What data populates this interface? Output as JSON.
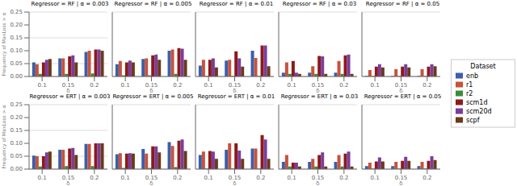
{
  "chart_data": [
    {
      "type": "bar",
      "title": "Regressor = RF | α = 0.003",
      "categories": [
        "0.1",
        "0.15",
        "0.2"
      ],
      "xlabel": "δ",
      "ylabel": "Frequency of MaxLoss > α",
      "legend": "right",
      "legend_title": "Dataset",
      "series": [
        {
          "name": "enb",
          "color": "#3a5fac",
          "values": [
            0.055,
            0.07,
            0.095
          ]
        },
        {
          "name": "r1",
          "color": "#c8523a",
          "values": [
            0.048,
            0.07,
            0.1
          ]
        },
        {
          "name": "r2",
          "color": "#3a8c3a",
          "values": [
            0.01,
            0.01,
            0.012
          ]
        },
        {
          "name": "scm1d",
          "color": "#8b1a1a",
          "values": [
            0.055,
            0.078,
            0.105
          ]
        },
        {
          "name": "scm20d",
          "color": "#7b3d9b",
          "values": [
            0.065,
            0.082,
            0.105
          ]
        },
        {
          "name": "scpf",
          "color": "#6b3a1a",
          "values": [
            0.068,
            0.055,
            0.1
          ]
        }
      ],
      "ylim": [
        0.0,
        0.25
      ],
      "yticks": [
        {
          "value": 0.0,
          "label": "0.00"
        },
        0.05,
        {
          "value": 0.1,
          "label": "0.10"
        },
        0.15,
        {
          "value": 0.2,
          "label": "0.20"
        },
        0.25
      ],
      "grid": true
    },
    {
      "type": "bar",
      "title": "Regressor = RF | α = 0.005",
      "categories": [
        "0.1",
        "0.15",
        "0.2"
      ],
      "xlabel": "δ",
      "tick_labels": "x",
      "series": [
        {
          "name": "enb",
          "color": "#3a5fac",
          "values": [
            0.048,
            0.068,
            0.1
          ]
        },
        {
          "name": "r1",
          "color": "#c8523a",
          "values": [
            0.06,
            0.07,
            0.105
          ]
        },
        {
          "name": "r2",
          "color": "#3a8c3a",
          "values": [
            0.005,
            0.005,
            0.01
          ]
        },
        {
          "name": "scm1d",
          "color": "#8b1a1a",
          "values": [
            0.055,
            0.082,
            0.11
          ]
        },
        {
          "name": "scm20d",
          "color": "#7b3d9b",
          "values": [
            0.062,
            0.085,
            0.108
          ]
        },
        {
          "name": "scpf",
          "color": "#6b3a1a",
          "values": [
            0.055,
            0.065,
            0.065
          ]
        }
      ],
      "ylim": [
        0.0,
        0.25
      ],
      "yticks": [
        {
          "value": 0.0,
          "label": "0.00"
        },
        0.05,
        {
          "value": 0.1,
          "label": "0.10"
        },
        0.15,
        {
          "value": 0.2,
          "label": "0.20"
        },
        0.25
      ],
      "grid": true
    },
    {
      "type": "bar",
      "title": "Regressor = RF | α = 0.01",
      "categories": [
        "0.1",
        "0.15",
        "0.2"
      ],
      "xlabel": "δ",
      "tick_labels": "x",
      "series": [
        {
          "name": "enb",
          "color": "#3a5fac",
          "values": [
            0.042,
            0.062,
            0.1
          ]
        },
        {
          "name": "r1",
          "color": "#c8523a",
          "values": [
            0.065,
            0.065,
            0.072
          ]
        },
        {
          "name": "r2",
          "color": "#3a8c3a",
          "values": [
            0.002,
            0.002,
            0.002
          ]
        },
        {
          "name": "scm1d",
          "color": "#8b1a1a",
          "values": [
            0.065,
            0.098,
            0.12
          ]
        },
        {
          "name": "scm20d",
          "color": "#7b3d9b",
          "values": [
            0.07,
            0.07,
            0.12
          ]
        },
        {
          "name": "scpf",
          "color": "#6b3a1a",
          "values": [
            0.035,
            0.038,
            0.04
          ]
        }
      ],
      "ylim": [
        0.0,
        0.25
      ],
      "yticks": [
        {
          "value": 0.0,
          "label": "0.00"
        },
        0.05,
        {
          "value": 0.1,
          "label": "0.10"
        },
        0.15,
        {
          "value": 0.2,
          "label": "0.20"
        },
        0.25
      ],
      "grid": true
    },
    {
      "type": "bar",
      "title": "Regressor = RF | α = 0.03",
      "categories": [
        "0.1",
        "0.15",
        "0.2"
      ],
      "xlabel": "δ",
      "tick_labels": "x",
      "series": [
        {
          "name": "enb",
          "color": "#3a5fac",
          "values": [
            0.015,
            0.015,
            0.015
          ]
        },
        {
          "name": "r1",
          "color": "#c8523a",
          "values": [
            0.055,
            0.04,
            0.06
          ]
        },
        {
          "name": "r2",
          "color": "#3a8c3a",
          "values": [
            0.01,
            0.01,
            0.01
          ]
        },
        {
          "name": "scm1d",
          "color": "#8b1a1a",
          "values": [
            0.06,
            0.08,
            0.082
          ]
        },
        {
          "name": "scm20d",
          "color": "#7b3d9b",
          "values": [
            0.015,
            0.078,
            0.085
          ]
        },
        {
          "name": "scpf",
          "color": "#6b3a1a",
          "values": [
            0.01,
            0.01,
            0.01
          ]
        }
      ],
      "ylim": [
        0.0,
        0.25
      ],
      "yticks": [
        {
          "value": 0.0,
          "label": "0.00"
        },
        0.05,
        {
          "value": 0.1,
          "label": "0.10"
        },
        0.15,
        {
          "value": 0.2,
          "label": "0.20"
        },
        0.25
      ],
      "grid": true
    },
    {
      "type": "bar",
      "title": "Regressor = RF | α = 0.05",
      "categories": [
        "0.1",
        "0.15",
        "0.2"
      ],
      "xlabel": "δ",
      "tick_labels": "x",
      "series": [
        {
          "name": "enb",
          "color": "#3a5fac",
          "values": [
            0.002,
            0.002,
            0.002
          ]
        },
        {
          "name": "r1",
          "color": "#c8523a",
          "values": [
            0.025,
            0.028,
            0.028
          ]
        },
        {
          "name": "r2",
          "color": "#3a8c3a",
          "values": [
            0.002,
            0.002,
            0.002
          ]
        },
        {
          "name": "scm1d",
          "color": "#8b1a1a",
          "values": [
            0.038,
            0.038,
            0.038
          ]
        },
        {
          "name": "scm20d",
          "color": "#7b3d9b",
          "values": [
            0.048,
            0.048,
            0.048
          ]
        },
        {
          "name": "scpf",
          "color": "#6b3a1a",
          "values": [
            0.035,
            0.035,
            0.04
          ]
        }
      ],
      "ylim": [
        0.0,
        0.25
      ],
      "yticks": [
        {
          "value": 0.0,
          "label": "0.00"
        },
        0.05,
        {
          "value": 0.1,
          "label": "0.10"
        },
        0.15,
        {
          "value": 0.2,
          "label": "0.20"
        },
        0.25
      ],
      "grid": true
    },
    {
      "type": "bar",
      "title": "Regressor = ERT | α = 0.003",
      "categories": [
        "0.1",
        "0.15",
        "0.2"
      ],
      "xlabel": "δ",
      "ylabel": "Frequency of MaxLoss > α",
      "series": [
        {
          "name": "enb",
          "color": "#3a5fac",
          "values": [
            0.052,
            0.075,
            0.098
          ]
        },
        {
          "name": "r1",
          "color": "#c8523a",
          "values": [
            0.05,
            0.075,
            0.098
          ]
        },
        {
          "name": "r2",
          "color": "#3a8c3a",
          "values": [
            0.01,
            0.012,
            0.012
          ]
        },
        {
          "name": "scm1d",
          "color": "#8b1a1a",
          "values": [
            0.05,
            0.08,
            0.1
          ]
        },
        {
          "name": "scm20d",
          "color": "#7b3d9b",
          "values": [
            0.065,
            0.082,
            0.1
          ]
        },
        {
          "name": "scpf",
          "color": "#6b3a1a",
          "values": [
            0.068,
            0.055,
            0.1
          ]
        }
      ],
      "ylim": [
        0.0,
        0.25
      ],
      "yticks": [
        {
          "value": 0.0,
          "label": "0.00"
        },
        0.05,
        {
          "value": 0.1,
          "label": "0.10"
        },
        0.15,
        {
          "value": 0.2,
          "label": "0.20"
        },
        0.25
      ],
      "grid": true
    },
    {
      "type": "bar",
      "title": "Regressor = ERT | α = 0.005",
      "categories": [
        "0.1",
        "0.15",
        "0.2"
      ],
      "xlabel": "δ",
      "tick_labels": "x",
      "series": [
        {
          "name": "enb",
          "color": "#3a5fac",
          "values": [
            0.058,
            0.078,
            0.105
          ]
        },
        {
          "name": "r1",
          "color": "#c8523a",
          "values": [
            0.062,
            0.06,
            0.09
          ]
        },
        {
          "name": "r2",
          "color": "#3a8c3a",
          "values": [
            0.005,
            0.005,
            0.008
          ]
        },
        {
          "name": "scm1d",
          "color": "#8b1a1a",
          "values": [
            0.06,
            0.088,
            0.11
          ]
        },
        {
          "name": "scm20d",
          "color": "#7b3d9b",
          "values": [
            0.062,
            0.088,
            0.115
          ]
        },
        {
          "name": "scpf",
          "color": "#6b3a1a",
          "values": [
            0.06,
            0.065,
            0.07
          ]
        }
      ],
      "ylim": [
        0.0,
        0.25
      ],
      "yticks": [
        {
          "value": 0.0,
          "label": "0.00"
        },
        0.05,
        {
          "value": 0.1,
          "label": "0.10"
        },
        0.15,
        {
          "value": 0.2,
          "label": "0.20"
        },
        0.25
      ],
      "grid": true
    },
    {
      "type": "bar",
      "title": "Regressor = ERT | α = 0.01",
      "categories": [
        "0.1",
        "0.15",
        "0.2"
      ],
      "xlabel": "δ",
      "tick_labels": "x",
      "series": [
        {
          "name": "enb",
          "color": "#3a5fac",
          "values": [
            0.055,
            0.075,
            0.08
          ]
        },
        {
          "name": "r1",
          "color": "#c8523a",
          "values": [
            0.068,
            0.1,
            0.08
          ]
        },
        {
          "name": "r2",
          "color": "#3a8c3a",
          "values": [
            0.002,
            0.002,
            0.002
          ]
        },
        {
          "name": "scm1d",
          "color": "#8b1a1a",
          "values": [
            0.07,
            0.1,
            0.132
          ]
        },
        {
          "name": "scm20d",
          "color": "#7b3d9b",
          "values": [
            0.068,
            0.072,
            0.115
          ]
        },
        {
          "name": "scpf",
          "color": "#6b3a1a",
          "values": [
            0.04,
            0.04,
            0.04
          ]
        }
      ],
      "ylim": [
        0.0,
        0.25
      ],
      "yticks": [
        {
          "value": 0.0,
          "label": "0.00"
        },
        0.05,
        {
          "value": 0.1,
          "label": "0.10"
        },
        0.15,
        {
          "value": 0.2,
          "label": "0.20"
        },
        0.25
      ],
      "grid": true
    },
    {
      "type": "bar",
      "title": "Regressor = ERT | α = 0.03",
      "categories": [
        "0.1",
        "0.15",
        "0.2"
      ],
      "xlabel": "δ",
      "tick_labels": "x",
      "series": [
        {
          "name": "enb",
          "color": "#3a5fac",
          "values": [
            0.028,
            0.028,
            0.028
          ]
        },
        {
          "name": "r1",
          "color": "#c8523a",
          "values": [
            0.055,
            0.04,
            0.055
          ]
        },
        {
          "name": "r2",
          "color": "#3a8c3a",
          "values": [
            0.01,
            0.01,
            0.01
          ]
        },
        {
          "name": "scm1d",
          "color": "#8b1a1a",
          "values": [
            0.025,
            0.055,
            0.06
          ]
        },
        {
          "name": "scm20d",
          "color": "#7b3d9b",
          "values": [
            0.025,
            0.065,
            0.068
          ]
        },
        {
          "name": "scpf",
          "color": "#6b3a1a",
          "values": [
            0.01,
            0.01,
            0.01
          ]
        }
      ],
      "ylim": [
        0.0,
        0.25
      ],
      "yticks": [
        {
          "value": 0.0,
          "label": "0.00"
        },
        0.05,
        {
          "value": 0.1,
          "label": "0.10"
        },
        0.15,
        {
          "value": 0.2,
          "label": "0.20"
        },
        0.25
      ],
      "grid": true
    },
    {
      "type": "bar",
      "title": "Regressor = ERT | α = 0.05",
      "categories": [
        "0.1",
        "0.15",
        "0.2"
      ],
      "xlabel": "δ",
      "tick_labels": "x",
      "series": [
        {
          "name": "enb",
          "color": "#3a5fac",
          "values": [
            0.012,
            0.012,
            0.012
          ]
        },
        {
          "name": "r1",
          "color": "#c8523a",
          "values": [
            0.025,
            0.028,
            0.028
          ]
        },
        {
          "name": "r2",
          "color": "#3a8c3a",
          "values": [
            0.002,
            0.002,
            0.002
          ]
        },
        {
          "name": "scm1d",
          "color": "#8b1a1a",
          "values": [
            0.03,
            0.032,
            0.032
          ]
        },
        {
          "name": "scm20d",
          "color": "#7b3d9b",
          "values": [
            0.045,
            0.048,
            0.05
          ]
        },
        {
          "name": "scpf",
          "color": "#6b3a1a",
          "values": [
            0.03,
            0.032,
            0.035
          ]
        }
      ],
      "ylim": [
        0.0,
        0.25
      ],
      "yticks": [
        {
          "value": 0.0,
          "label": "0.00"
        },
        0.05,
        {
          "value": 0.1,
          "label": "0.10"
        },
        0.15,
        {
          "value": 0.2,
          "label": "0.20"
        },
        0.25
      ],
      "grid": true
    }
  ]
}
